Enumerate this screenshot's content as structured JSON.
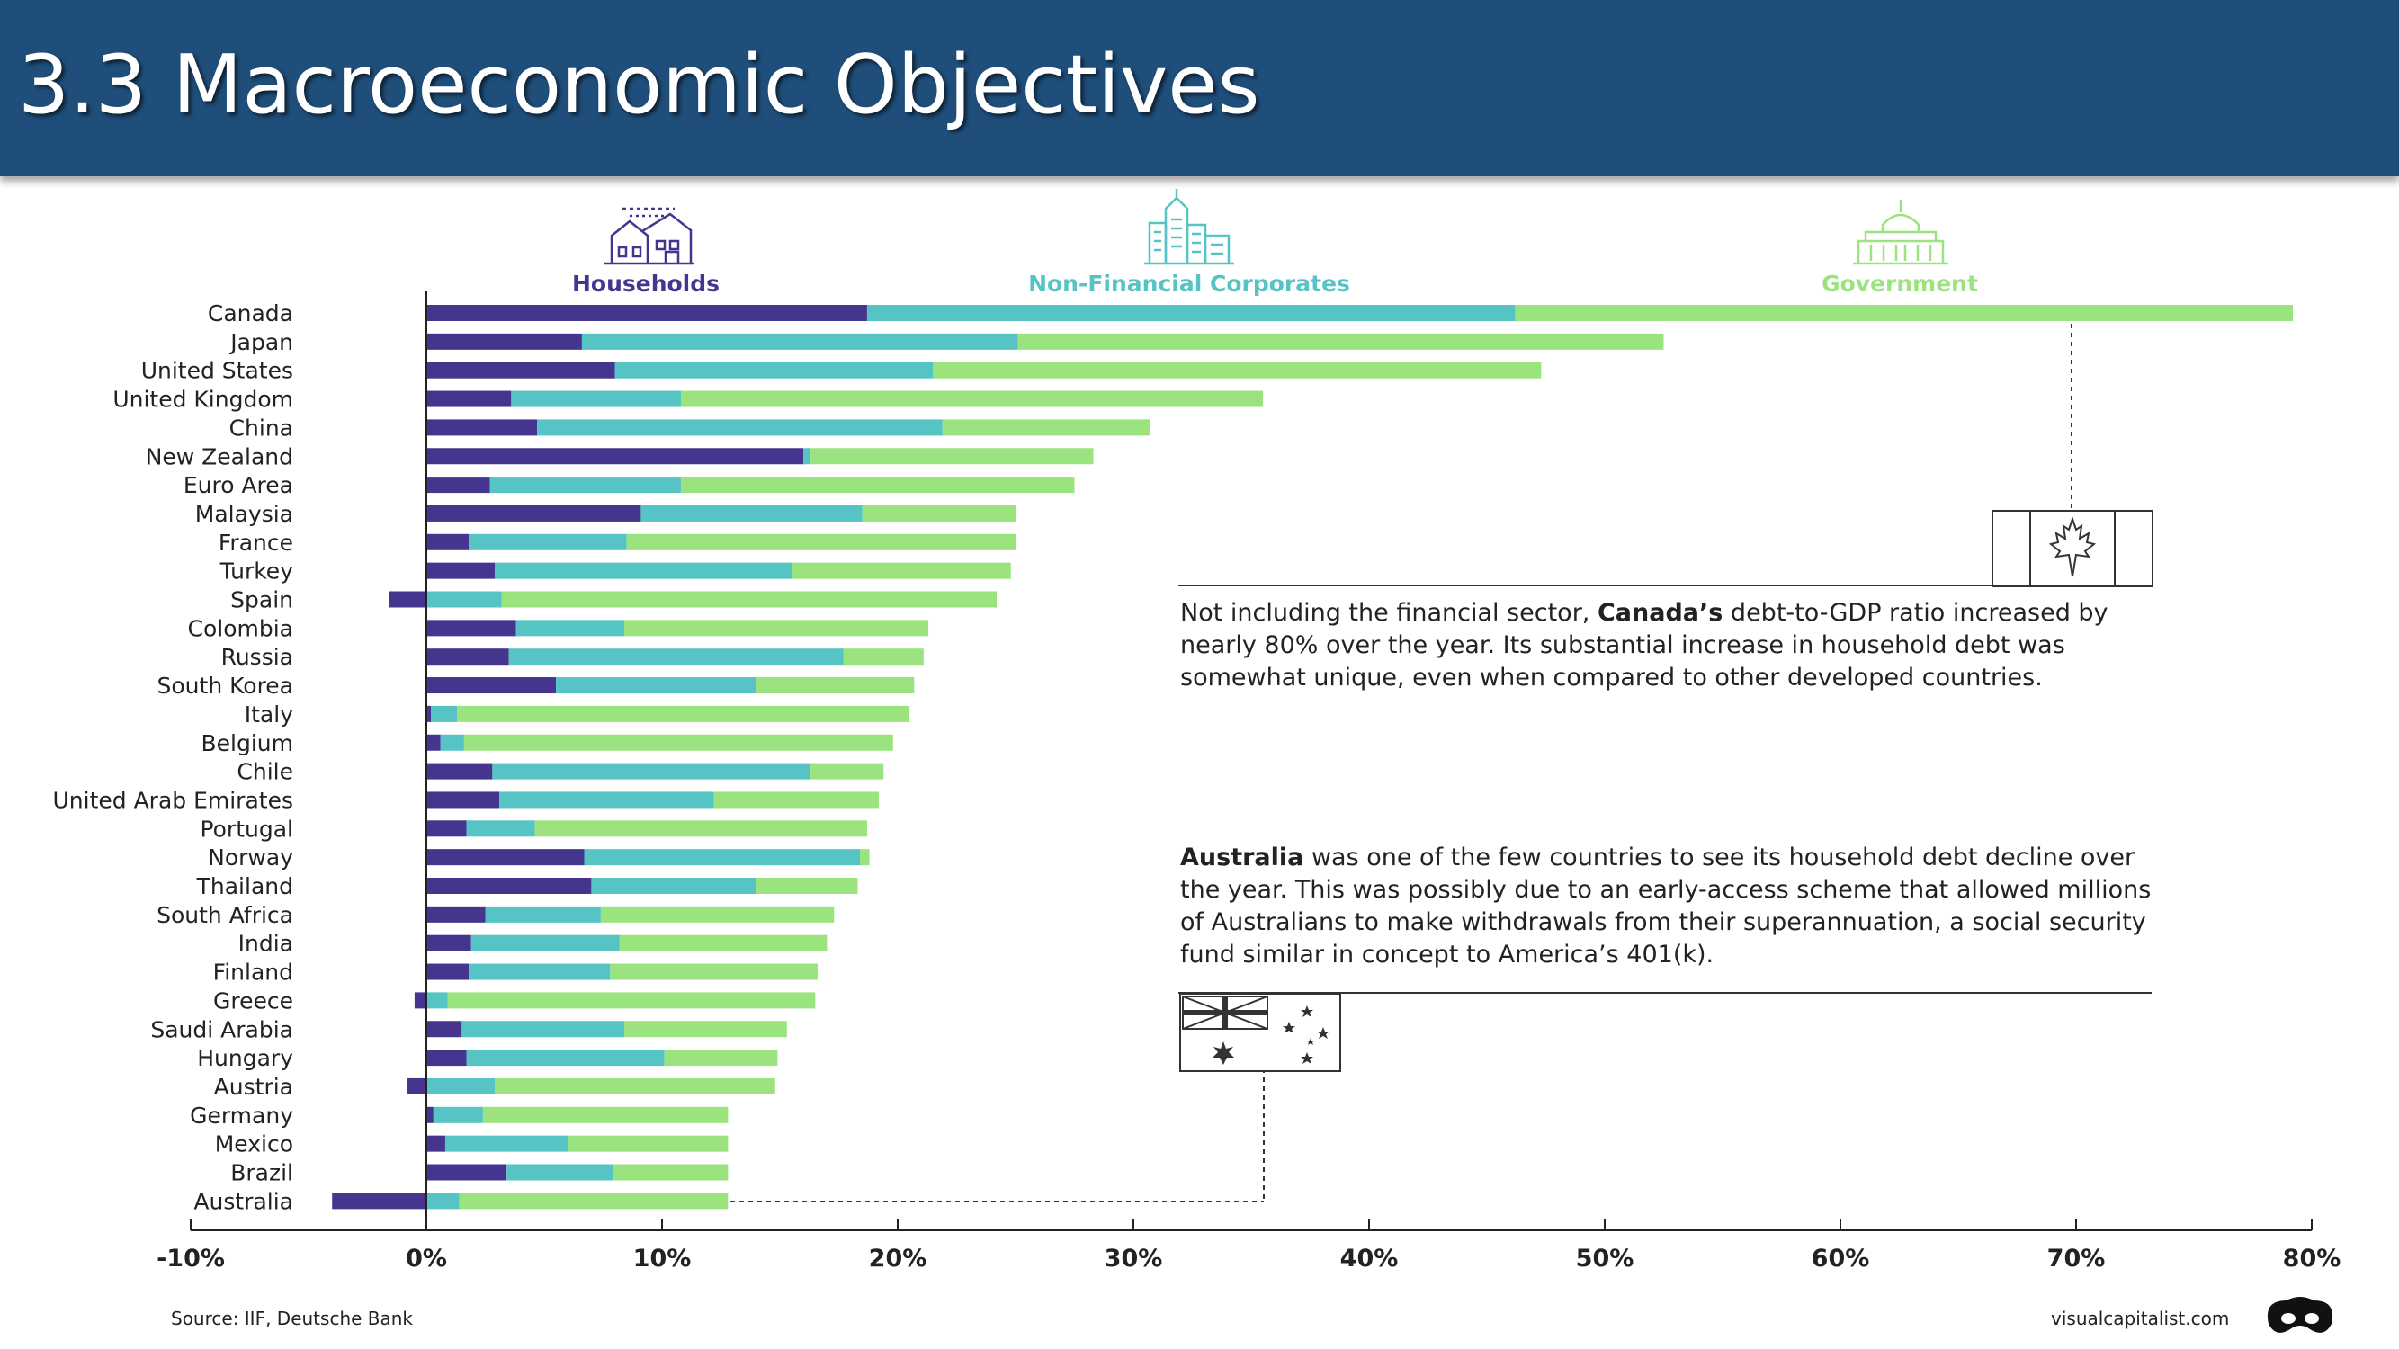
{
  "header": {
    "title": "3.3 Macroeconomic Objectives"
  },
  "colors": {
    "header_bg": "#1f4e7a",
    "households": "#45358f",
    "non_financial_corporates": "#56c4c4",
    "government": "#9be37e"
  },
  "chart_data": {
    "type": "bar",
    "orientation": "horizontal",
    "stacked": true,
    "title": "",
    "xlabel": "",
    "ylabel": "",
    "xlim": [
      -10,
      80
    ],
    "x_ticks": [
      "-10%",
      "0%",
      "10%",
      "20%",
      "30%",
      "40%",
      "50%",
      "60%",
      "70%",
      "80%"
    ],
    "legend_position": "top",
    "categories": [
      "Canada",
      "Japan",
      "United States",
      "United Kingdom",
      "China",
      "New Zealand",
      "Euro Area",
      "Malaysia",
      "France",
      "Turkey",
      "Spain",
      "Colombia",
      "Russia",
      "South Korea",
      "Italy",
      "Belgium",
      "Chile",
      "United Arab Emirates",
      "Portugal",
      "Norway",
      "Thailand",
      "South Africa",
      "India",
      "Finland",
      "Greece",
      "Saudi Arabia",
      "Hungary",
      "Austria",
      "Germany",
      "Mexico",
      "Brazil",
      "Australia"
    ],
    "series": [
      {
        "name": "Households",
        "color": "#45358f",
        "values": [
          18.7,
          6.6,
          8.0,
          3.6,
          4.7,
          16.0,
          2.7,
          9.1,
          1.8,
          2.9,
          -1.6,
          3.8,
          3.5,
          5.5,
          0.2,
          0.6,
          2.8,
          3.1,
          1.7,
          6.7,
          7.0,
          2.5,
          1.9,
          1.8,
          -0.5,
          1.5,
          1.7,
          -0.8,
          0.3,
          0.8,
          3.4,
          -4.0
        ]
      },
      {
        "name": "Non-Financial Corporates",
        "color": "#56c4c4",
        "values": [
          27.5,
          18.5,
          13.5,
          7.2,
          17.2,
          0.3,
          8.1,
          9.4,
          6.7,
          12.6,
          3.2,
          4.6,
          14.2,
          8.5,
          1.1,
          1.0,
          13.5,
          9.1,
          2.9,
          11.7,
          7.0,
          4.9,
          6.3,
          6.0,
          0.9,
          6.9,
          8.4,
          2.9,
          2.1,
          5.2,
          4.5,
          1.4
        ]
      },
      {
        "name": "Government",
        "color": "#9be37e",
        "values": [
          33.0,
          27.4,
          25.8,
          24.7,
          8.8,
          12.0,
          16.7,
          6.5,
          16.5,
          9.3,
          21.0,
          12.9,
          3.4,
          6.7,
          19.2,
          18.2,
          3.1,
          7.0,
          14.1,
          0.4,
          4.3,
          9.9,
          8.8,
          8.8,
          15.6,
          6.9,
          4.8,
          11.9,
          10.4,
          6.8,
          4.9,
          11.4
        ]
      }
    ],
    "annotations": [
      {
        "series": "Households",
        "icon": "house-icon"
      },
      {
        "series": "Non-Financial Corporates",
        "icon": "office-buildings-icon"
      },
      {
        "series": "Government",
        "icon": "capitol-building-icon"
      }
    ]
  },
  "notes": {
    "canada": {
      "flag": "canada-flag",
      "pre": "Not including the financial sector, ",
      "bold": "Canada’s",
      "rest": " debt-to-GDP ratio increased by nearly 80% over the year. Its substantial increase in household debt was somewhat unique, even when compared to other developed countries."
    },
    "australia": {
      "flag": "australia-flag",
      "bold": "Australia",
      "rest": " was one of the few countries to see its household debt decline over the year. This was possibly due to an early-access scheme that allowed millions of Australians to make withdrawals from their superannuation, a social security fund similar in concept to America’s 401(k)."
    }
  },
  "footer": {
    "source": "Source: IIF, Deutsche Bank",
    "brand": "visualcapitalist.com",
    "brand_icon": "visual-capitalist-logo"
  }
}
